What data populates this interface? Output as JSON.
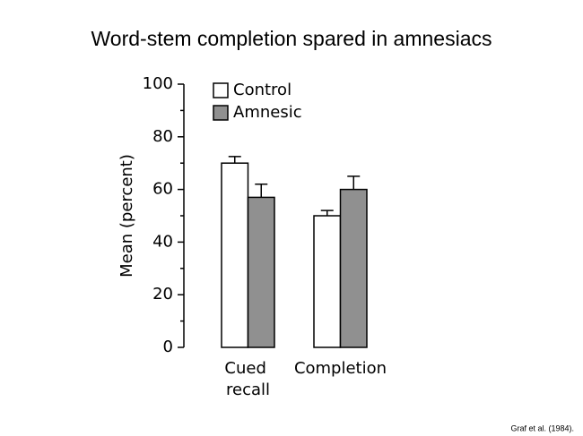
{
  "chart_data": {
    "type": "bar",
    "title": "Word-stem completion spared in amnesiacs",
    "ylabel": "Mean (percent)",
    "categories": [
      "Cued recall",
      "Completion"
    ],
    "series": [
      {
        "name": "Control",
        "color": "#ffffff",
        "values": [
          70,
          50
        ],
        "errors": [
          2.5,
          2
        ]
      },
      {
        "name": "Amnesic",
        "color": "#909090",
        "values": [
          57,
          60
        ],
        "errors": [
          5,
          5
        ]
      }
    ],
    "ylim": [
      0,
      100
    ],
    "yticks": [
      0,
      20,
      40,
      60,
      80,
      100
    ],
    "minor_yticks": [
      10,
      30,
      50,
      70,
      90
    ],
    "legend": "upper-left",
    "source": "Graf et al. (1984)."
  }
}
